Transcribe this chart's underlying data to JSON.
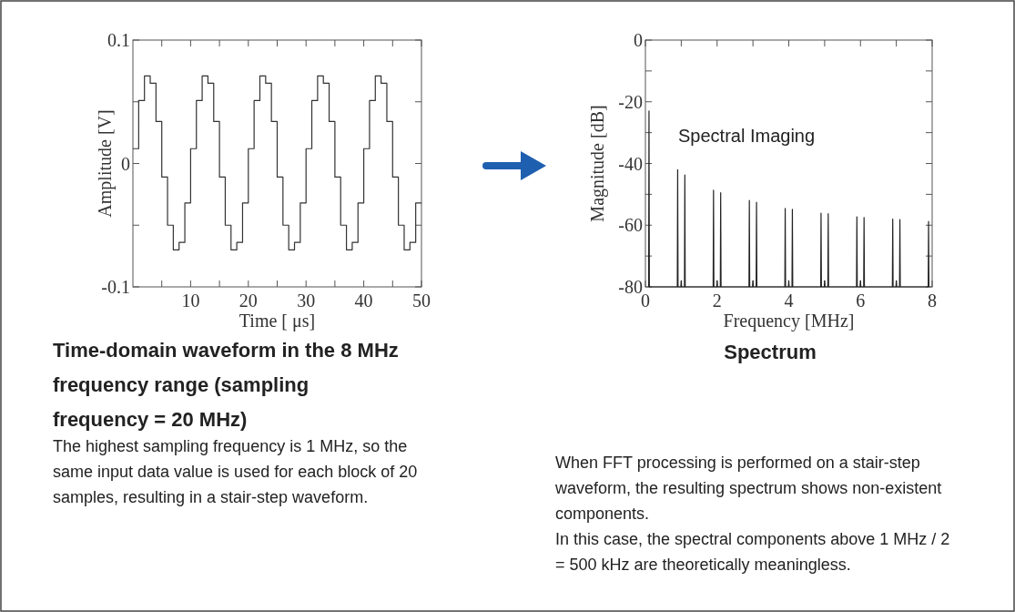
{
  "chart_data": [
    {
      "type": "step",
      "title": "Time-domain waveform in the 8 MHz frequency range (sampling frequency = 20 MHz)",
      "xlabel": "Time [ μs]",
      "ylabel": "Amplitude [V]",
      "x": [
        0,
        1,
        2,
        3,
        4,
        5,
        6,
        7,
        8,
        9,
        10,
        11,
        12,
        13,
        14,
        15,
        16,
        17,
        18,
        19,
        20,
        21,
        22,
        23,
        24,
        25,
        26,
        27,
        28,
        29,
        30,
        31,
        32,
        33,
        34,
        35,
        36,
        37,
        38,
        39,
        40,
        41,
        42,
        43,
        44,
        45,
        46,
        47,
        48,
        49,
        50
      ],
      "series": [
        {
          "color": "#333333",
          "values": [
            0.012,
            0.051,
            0.071,
            0.065,
            0.034,
            -0.011,
            -0.05,
            -0.07,
            -0.064,
            -0.032,
            0.012,
            0.051,
            0.071,
            0.065,
            0.034,
            -0.011,
            -0.05,
            -0.07,
            -0.064,
            -0.032,
            0.012,
            0.051,
            0.071,
            0.065,
            0.034,
            -0.011,
            -0.05,
            -0.07,
            -0.064,
            -0.032,
            0.012,
            0.051,
            0.071,
            0.065,
            0.034,
            -0.011,
            -0.05,
            -0.07,
            -0.064,
            -0.032,
            0.012,
            0.051,
            0.071,
            0.065,
            0.034,
            -0.011,
            -0.05,
            -0.07,
            -0.064,
            -0.032,
            -0.032
          ]
        }
      ],
      "xlim": [
        0,
        50
      ],
      "xticks": [
        {
          "value": 5,
          "label": null
        },
        10,
        {
          "value": 15,
          "label": null
        },
        20,
        {
          "value": 25,
          "label": null
        },
        30,
        {
          "value": 35,
          "label": null
        },
        40,
        {
          "value": 45,
          "label": null
        },
        50
      ],
      "ylim": [
        -0.1,
        0.1
      ],
      "yticks": [
        -0.1,
        {
          "value": -0.05,
          "label": null
        },
        0,
        {
          "value": 0.05,
          "label": null
        },
        0.1
      ],
      "annotations": [
        "The highest sampling frequency is 1 MHz, so the same input data value is used for each block of 20 samples, resulting in a stair-step waveform."
      ]
    },
    {
      "type": "line",
      "title": "Spectrum",
      "xlabel": "Frequency [MHz]",
      "ylabel": "Magnitude [dB]",
      "x": [
        0.09,
        0.1,
        0.11,
        0.89,
        0.9,
        0.91,
        0.99,
        1.0,
        1.01,
        1.09,
        1.1,
        1.11,
        1.89,
        1.9,
        1.91,
        1.99,
        2.0,
        2.01,
        2.09,
        2.1,
        2.11,
        2.89,
        2.9,
        2.91,
        2.99,
        3.0,
        3.01,
        3.09,
        3.1,
        3.11,
        3.89,
        3.9,
        3.91,
        3.99,
        4.0,
        4.01,
        4.09,
        4.1,
        4.11,
        4.89,
        4.9,
        4.91,
        4.99,
        5.0,
        5.01,
        5.09,
        5.1,
        5.11,
        5.89,
        5.9,
        5.91,
        5.99,
        6.0,
        6.01,
        6.09,
        6.1,
        6.11,
        6.89,
        6.9,
        6.91,
        6.99,
        7.0,
        7.01,
        7.09,
        7.1,
        7.11,
        7.89,
        7.9,
        7.91
      ],
      "series": [
        {
          "color": "#222222",
          "values": [
            -80,
            -23,
            -80,
            -80,
            -42,
            -80,
            -80,
            -78,
            -80,
            -80,
            -43.7,
            -80,
            -80,
            -48.7,
            -80,
            -80,
            -78,
            -80,
            -80,
            -49.5,
            -80,
            -80,
            -52,
            -80,
            -80,
            -78,
            -80,
            -80,
            -52.6,
            -80,
            -80,
            -54.6,
            -80,
            -80,
            -78,
            -80,
            -80,
            -54.9,
            -80,
            -80,
            -56.1,
            -80,
            -80,
            -78,
            -80,
            -80,
            -56.3,
            -80,
            -80,
            -57.3,
            -80,
            -80,
            -78,
            -80,
            -80,
            -57.5,
            -80,
            -80,
            -58,
            -80,
            -80,
            -78,
            -80,
            -80,
            -58.2,
            -80,
            -80,
            -58.8,
            -80
          ]
        }
      ],
      "xlim": [
        0,
        8
      ],
      "xticks": [
        0,
        {
          "value": 1,
          "label": null
        },
        2,
        {
          "value": 3,
          "label": null
        },
        4,
        {
          "value": 5,
          "label": null
        },
        6,
        {
          "value": 7,
          "label": null
        },
        8
      ],
      "ylim": [
        -80,
        0
      ],
      "yticks": [
        -80,
        {
          "value": -70,
          "label": null
        },
        -60,
        {
          "value": -50,
          "label": null
        },
        -40,
        {
          "value": -30,
          "label": null
        },
        -20,
        {
          "value": -10,
          "label": null
        },
        0
      ],
      "annotations": [
        "Spectral Imaging",
        "When FFT processing is performed on a stair-step waveform, the resulting spectrum shows non-existent components.\nIn this case, the spectral components above 1 MHz / 2 = 500 kHz are theoretically meaningless."
      ]
    }
  ]
}
